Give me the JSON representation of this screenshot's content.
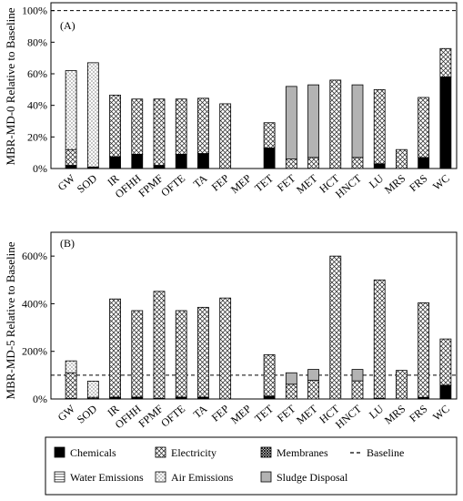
{
  "chart_data": [
    {
      "type": "bar",
      "panel_label": "(A)",
      "ylabel": "MBR-MD-0 Relative to Baseline",
      "ylim": [
        0,
        1.05
      ],
      "yticks": [
        0,
        0.2,
        0.4,
        0.6,
        0.8,
        1.0
      ],
      "ytick_labels": [
        "0%",
        "20%",
        "40%",
        "60%",
        "80%",
        "100%"
      ],
      "baseline": 1.0,
      "categories": [
        "GW",
        "SOD",
        "IR",
        "OFHH",
        "FPMF",
        "OFTE",
        "TA",
        "FEP",
        "MEP",
        "TET",
        "FET",
        "MET",
        "HCT",
        "HNCT",
        "LU",
        "MRS",
        "FRS",
        "WC"
      ],
      "series": [
        {
          "name": "Chemicals",
          "values": [
            0.02,
            0.01,
            0.075,
            0.09,
            0.02,
            0.09,
            0.095,
            0.0,
            0.0,
            0.13,
            0.0,
            0.0,
            0.0,
            0.0,
            0.03,
            0.0,
            0.07,
            0.58
          ]
        },
        {
          "name": "Electricity",
          "values": [
            0.1,
            0.0,
            0.39,
            0.35,
            0.42,
            0.35,
            0.35,
            0.41,
            0.0,
            0.16,
            0.06,
            0.07,
            0.56,
            0.07,
            0.47,
            0.12,
            0.38,
            0.18
          ]
        },
        {
          "name": "Membranes",
          "values": [
            0.0,
            0.0,
            0.0,
            0.0,
            0.0,
            0.0,
            0.0,
            0.0,
            0.0,
            0.0,
            0.0,
            0.0,
            0.0,
            0.0,
            0.0,
            0.0,
            0.0,
            0.0
          ]
        },
        {
          "name": "Water Emissions",
          "values": [
            0.0,
            0.0,
            0.0,
            0.0,
            0.0,
            0.0,
            0.0,
            0.0,
            0.0,
            0.0,
            0.0,
            0.0,
            0.0,
            0.0,
            0.0,
            0.0,
            0.0,
            0.0
          ]
        },
        {
          "name": "Air Emissions",
          "values": [
            0.5,
            0.66,
            0.0,
            0.0,
            0.0,
            0.0,
            0.0,
            0.0,
            0.0,
            0.0,
            0.0,
            0.0,
            0.0,
            0.0,
            0.0,
            0.0,
            0.0,
            0.0
          ]
        },
        {
          "name": "Sludge Disposal",
          "values": [
            0.0,
            0.0,
            0.0,
            0.0,
            0.0,
            0.0,
            0.0,
            0.0,
            0.0,
            0.0,
            0.46,
            0.46,
            0.0,
            0.46,
            0.0,
            0.0,
            0.0,
            0.0
          ]
        }
      ]
    },
    {
      "type": "bar",
      "panel_label": "(B)",
      "ylabel": "MBR-MD-5 Relative to Baseline",
      "ylim": [
        0,
        7.0
      ],
      "yticks": [
        0,
        2,
        4,
        6
      ],
      "ytick_labels": [
        "0%",
        "200%",
        "400%",
        "600%"
      ],
      "baseline": 1.0,
      "categories": [
        "GW",
        "SOD",
        "IR",
        "OFHH",
        "FPMF",
        "OFTE",
        "TA",
        "FEP",
        "MEP",
        "TET",
        "FET",
        "MET",
        "HCT",
        "HNCT",
        "LU",
        "MRS",
        "FRS",
        "WC"
      ],
      "series": [
        {
          "name": "Chemicals",
          "values": [
            0.02,
            0.02,
            0.08,
            0.08,
            0.03,
            0.08,
            0.08,
            0.0,
            0.0,
            0.12,
            0.0,
            0.0,
            0.0,
            0.0,
            0.03,
            0.0,
            0.07,
            0.58
          ]
        },
        {
          "name": "Electricity",
          "values": [
            1.08,
            0.05,
            4.12,
            3.63,
            4.49,
            3.63,
            3.77,
            4.24,
            0.0,
            1.74,
            0.62,
            0.78,
            6.0,
            0.76,
            4.97,
            1.2,
            3.97,
            1.94
          ]
        },
        {
          "name": "Membranes",
          "values": [
            0.0,
            0.0,
            0.0,
            0.0,
            0.0,
            0.0,
            0.0,
            0.0,
            0.0,
            0.0,
            0.0,
            0.0,
            0.0,
            0.0,
            0.0,
            0.0,
            0.0,
            0.0
          ]
        },
        {
          "name": "Water Emissions",
          "values": [
            0.0,
            0.0,
            0.0,
            0.0,
            0.0,
            0.0,
            0.0,
            0.0,
            0.0,
            0.0,
            0.0,
            0.0,
            0.0,
            0.0,
            0.0,
            0.0,
            0.0,
            0.0
          ]
        },
        {
          "name": "Air Emissions",
          "values": [
            0.5,
            0.68,
            0.0,
            0.0,
            0.0,
            0.0,
            0.0,
            0.0,
            0.0,
            0.0,
            0.0,
            0.0,
            0.0,
            0.0,
            0.0,
            0.0,
            0.0,
            0.0
          ]
        },
        {
          "name": "Sludge Disposal",
          "values": [
            0.0,
            0.0,
            0.0,
            0.0,
            0.0,
            0.0,
            0.0,
            0.0,
            0.0,
            0.0,
            0.48,
            0.46,
            0.0,
            0.48,
            0.0,
            0.0,
            0.0,
            0.0
          ]
        }
      ]
    }
  ],
  "legend": {
    "items": [
      {
        "label": "Chemicals",
        "pattern": "solid-black"
      },
      {
        "label": "Electricity",
        "pattern": "crosshatch"
      },
      {
        "label": "Membranes",
        "pattern": "dense-crosshatch"
      },
      {
        "label": "Baseline",
        "pattern": "dashed-line"
      },
      {
        "label": "Water Emissions",
        "pattern": "hline"
      },
      {
        "label": "Air Emissions",
        "pattern": "dots"
      },
      {
        "label": "Sludge Disposal",
        "pattern": "gray"
      }
    ]
  }
}
